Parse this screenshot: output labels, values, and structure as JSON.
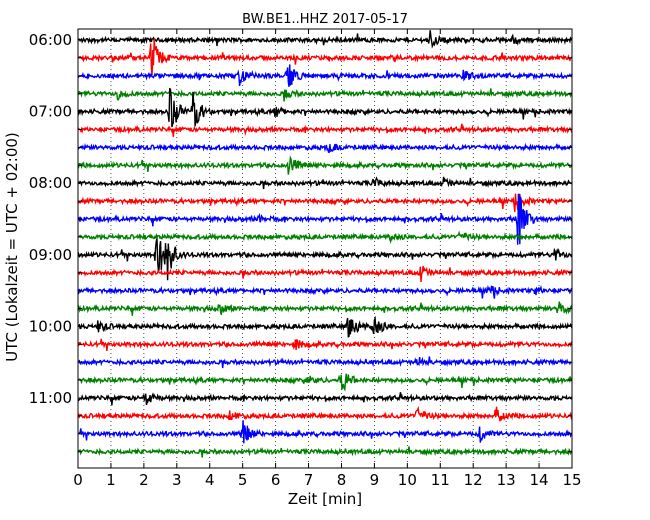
{
  "chart_data": {
    "type": "line",
    "title": "BW.BE1..HHZ 2017-05-17",
    "xlabel": "Zeit  [min]",
    "ylabel": "UTC (Lokalzeit = UTC + 02:00)",
    "xlim": [
      0,
      15
    ],
    "x_ticks": [
      0,
      1,
      2,
      3,
      4,
      5,
      6,
      7,
      8,
      9,
      10,
      11,
      12,
      13,
      14,
      15
    ],
    "x_tick_labels": [
      "0",
      "1",
      "2",
      "3",
      "4",
      "5",
      "6",
      "7",
      "8",
      "9",
      "10",
      "11",
      "12",
      "13",
      "14",
      "15"
    ],
    "y_tick_labels": [
      "06:00",
      "07:00",
      "08:00",
      "09:00",
      "10:00",
      "11:00"
    ],
    "grid": "vertical-dotted",
    "color_cycle": [
      "#000000",
      "#ff0000",
      "#0000ff",
      "#008000"
    ],
    "traces_start": "06:00",
    "trace_interval_min": 15,
    "series": [
      {
        "start": "06:00",
        "events": [
          {
            "t": 10.7,
            "amp": 0.55
          },
          {
            "t": 13.2,
            "amp": 0.2
          }
        ]
      },
      {
        "start": "06:15",
        "events": [
          {
            "t": 2.25,
            "amp": 1.6
          }
        ]
      },
      {
        "start": "06:30",
        "events": [
          {
            "t": 4.9,
            "amp": 0.6
          },
          {
            "t": 6.35,
            "amp": 0.9
          },
          {
            "t": 11.7,
            "amp": 0.35
          }
        ]
      },
      {
        "start": "06:45",
        "events": [
          {
            "t": 1.2,
            "amp": 0.35
          },
          {
            "t": 6.3,
            "amp": 0.25
          }
        ]
      },
      {
        "start": "07:00",
        "events": [
          {
            "t": 2.8,
            "amp": 1.6
          },
          {
            "t": 3.5,
            "amp": 1.2
          },
          {
            "t": 6.0,
            "amp": 0.3
          }
        ]
      },
      {
        "start": "07:15",
        "events": []
      },
      {
        "start": "07:30",
        "events": [
          {
            "t": 7.6,
            "amp": 0.25
          }
        ]
      },
      {
        "start": "07:45",
        "events": [
          {
            "t": 6.4,
            "amp": 0.7
          }
        ]
      },
      {
        "start": "08:00",
        "events": [
          {
            "t": 9.0,
            "amp": 0.3
          },
          {
            "t": 11.1,
            "amp": 0.3
          }
        ]
      },
      {
        "start": "08:15",
        "events": [
          {
            "t": 13.3,
            "amp": 0.55
          }
        ]
      },
      {
        "start": "08:30",
        "events": [
          {
            "t": 13.35,
            "amp": 2.0
          },
          {
            "t": 5.5,
            "amp": 0.2
          }
        ]
      },
      {
        "start": "08:45",
        "events": [
          {
            "t": 9.5,
            "amp": 0.25
          },
          {
            "t": 11.6,
            "amp": 0.25
          }
        ]
      },
      {
        "start": "09:00",
        "events": [
          {
            "t": 2.4,
            "amp": 1.6
          },
          {
            "t": 2.7,
            "amp": 1.3
          },
          {
            "t": 14.5,
            "amp": 0.35
          }
        ]
      },
      {
        "start": "09:15",
        "events": [
          {
            "t": 10.4,
            "amp": 0.5
          }
        ]
      },
      {
        "start": "09:30",
        "events": [
          {
            "t": 12.5,
            "amp": 0.3
          },
          {
            "t": 13.9,
            "amp": 0.2
          }
        ]
      },
      {
        "start": "09:45",
        "events": [
          {
            "t": 4.3,
            "amp": 0.35
          },
          {
            "t": 14.6,
            "amp": 0.5
          }
        ]
      },
      {
        "start": "10:00",
        "events": [
          {
            "t": 8.2,
            "amp": 1.0
          },
          {
            "t": 8.95,
            "amp": 0.9
          },
          {
            "t": 0.6,
            "amp": 0.3
          }
        ]
      },
      {
        "start": "10:15",
        "events": [
          {
            "t": 6.6,
            "amp": 0.3
          }
        ]
      },
      {
        "start": "10:30",
        "events": [
          {
            "t": 10.3,
            "amp": 0.25
          }
        ]
      },
      {
        "start": "10:45",
        "events": [
          {
            "t": 8.0,
            "amp": 0.8
          },
          {
            "t": 7.0,
            "amp": 0.25
          }
        ]
      },
      {
        "start": "11:00",
        "events": [
          {
            "t": 2.05,
            "amp": 0.5
          }
        ]
      },
      {
        "start": "11:15",
        "events": [
          {
            "t": 10.3,
            "amp": 0.45
          },
          {
            "t": 12.7,
            "amp": 0.45
          },
          {
            "t": 4.6,
            "amp": 0.3
          }
        ]
      },
      {
        "start": "11:30",
        "events": [
          {
            "t": 5.0,
            "amp": 0.8
          },
          {
            "t": 12.2,
            "amp": 0.45
          }
        ]
      },
      {
        "start": "11:45",
        "events": []
      }
    ]
  }
}
